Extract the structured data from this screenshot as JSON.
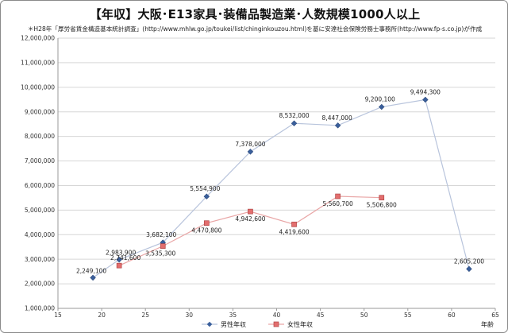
{
  "chart_data": {
    "type": "line",
    "title": "【年収】大阪･E13家具･装備品製造業･人数規模1000人以上",
    "subtitle": "＊H28年「厚労省賃金構造基本統計調査」(http://www.mhlw.go.jp/toukei/list/chinginkouzou.html)を基に安達社会保険労務士事務所(http://www.fp-s.co.jp)が作成",
    "xlabel": "年齢",
    "ylabel": "",
    "xlim": [
      15,
      65
    ],
    "ylim": [
      1000000,
      12000000
    ],
    "x_ticks": [
      "15",
      "20",
      "25",
      "30",
      "35",
      "40",
      "45",
      "50",
      "55",
      "60",
      "65"
    ],
    "y_ticks": [
      "1,000,000",
      "2,000,000",
      "3,000,000",
      "4,000,000",
      "5,000,000",
      "6,000,000",
      "7,000,000",
      "8,000,000",
      "9,000,000",
      "10,000,000",
      "11,000,000",
      "12,000,000"
    ],
    "grid": "horizontal",
    "legend_position": "bottom",
    "series": [
      {
        "name": "男性年収",
        "color": "#3a5f9c",
        "line_color": "#b8c4dc",
        "marker": "diamond",
        "x": [
          19,
          22,
          27,
          32,
          37,
          42,
          47,
          52,
          57,
          62
        ],
        "values": [
          2249100,
          2983900,
          3682100,
          5554900,
          7378000,
          8532000,
          8447000,
          9200100,
          9494300,
          2605200
        ],
        "labels": [
          "2,249,100",
          "2,983,900",
          "3,682,100",
          "5,554,900",
          "7,378,000",
          "8,532,000",
          "8,447,000",
          "9,200,100",
          "9,494,300",
          "2,605,200"
        ]
      },
      {
        "name": "女性年収",
        "color": "#e36e6e",
        "line_color": "#e9a6a6",
        "marker": "square",
        "x": [
          22,
          27,
          32,
          37,
          42,
          47,
          52
        ],
        "values": [
          2741600,
          3535300,
          4470800,
          4942600,
          4419600,
          5560700,
          5506800
        ],
        "labels": [
          "2,741,600",
          "3,535,300",
          "4,470,800",
          "4,942,600",
          "4,419,600",
          "5,560,700",
          "5,506,800"
        ]
      }
    ]
  }
}
